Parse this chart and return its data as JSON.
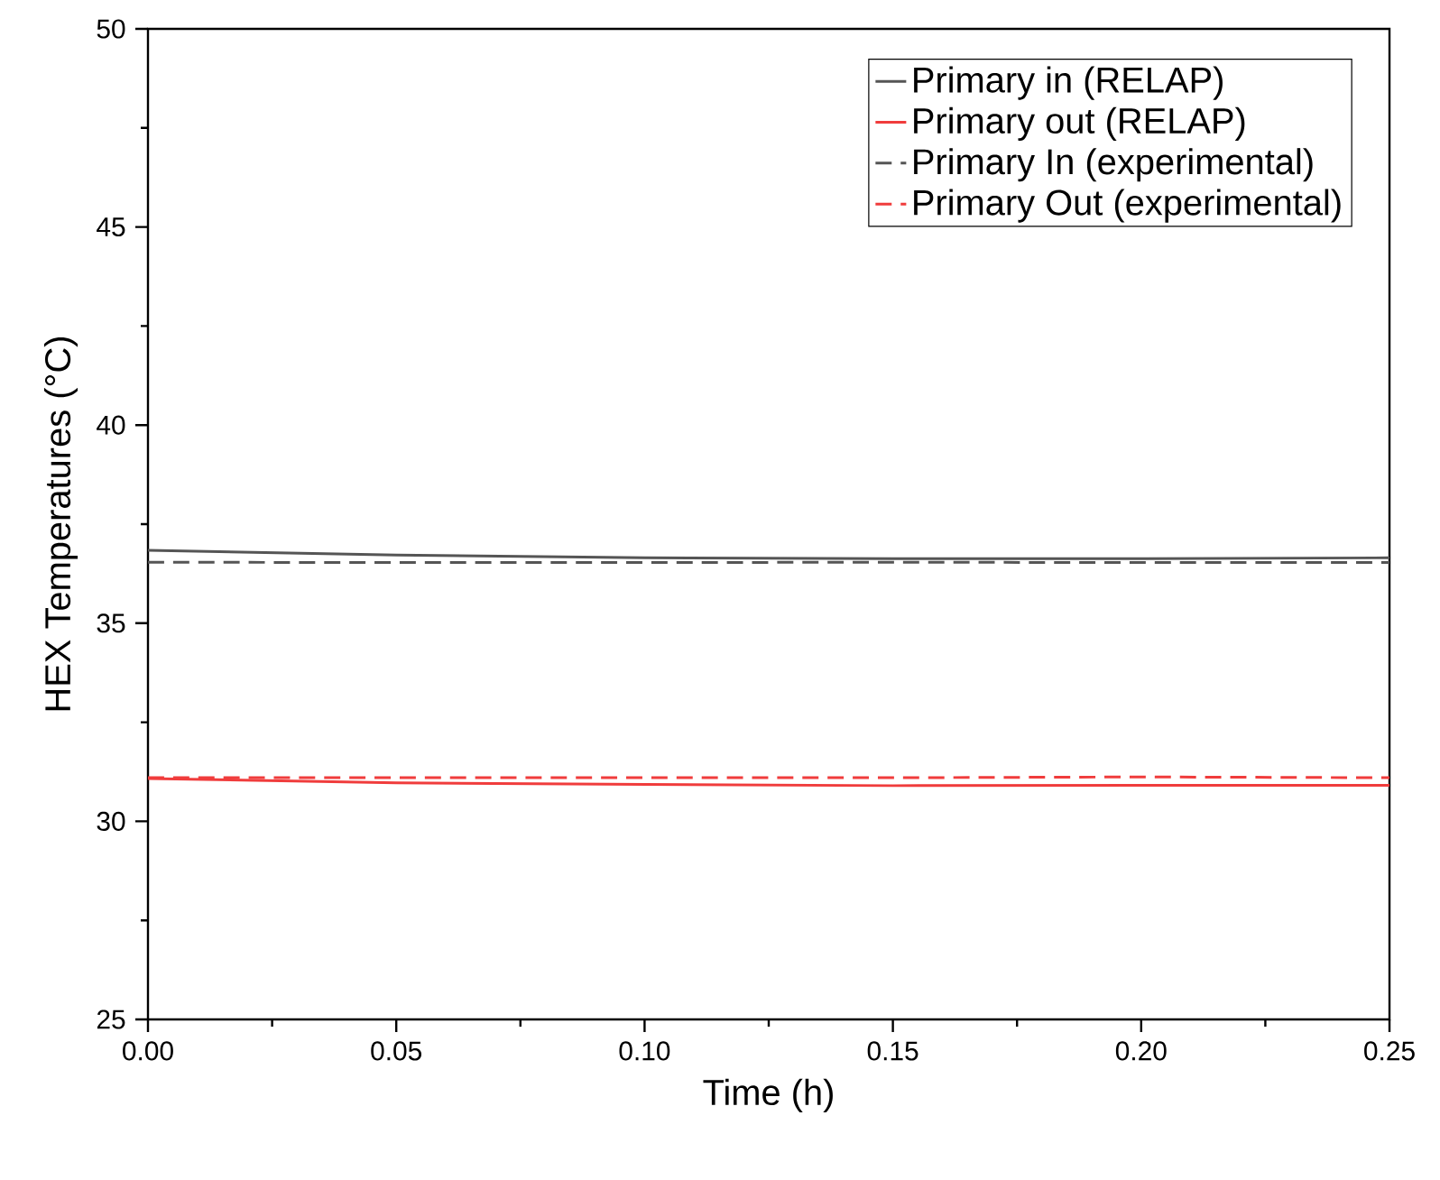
{
  "chart_data": {
    "type": "line",
    "xlabel": "Time (h)",
    "ylabel": "HEX Temperatures (°C)",
    "xlim": [
      0,
      0.25
    ],
    "ylim": [
      25,
      50
    ],
    "xticks": [
      {
        "value": 0,
        "label": "0.00"
      },
      {
        "value": 0.05,
        "label": "0.05"
      },
      {
        "value": 0.1,
        "label": "0.10"
      },
      {
        "value": 0.15,
        "label": "0.15"
      },
      {
        "value": 0.2,
        "label": "0.20"
      },
      {
        "value": 0.25,
        "label": "0.25"
      }
    ],
    "yticks": [
      25,
      30,
      35,
      40,
      45,
      50
    ],
    "legend": "top right",
    "grid": false,
    "marker": "none",
    "series": [
      {
        "name": "Primary in (RELAP)",
        "color": "#555555",
        "line_style": "solid",
        "x": [
          0,
          0.05,
          0.1,
          0.15,
          0.2,
          0.25
        ],
        "values": [
          36.84,
          36.72,
          36.65,
          36.63,
          36.63,
          36.65
        ]
      },
      {
        "name": "Primary out (RELAP)",
        "color": "#f03c3c",
        "line_style": "solid",
        "x": [
          0,
          0.05,
          0.1,
          0.15,
          0.2,
          0.25
        ],
        "values": [
          31.08,
          30.97,
          30.93,
          30.9,
          30.91,
          30.91
        ]
      },
      {
        "name": "Primary In (experimental)",
        "color": "#555555",
        "line_style": "dashed",
        "x": [
          0,
          0.05,
          0.1,
          0.15,
          0.2,
          0.25
        ],
        "values": [
          36.54,
          36.53,
          36.53,
          36.54,
          36.53,
          36.53
        ]
      },
      {
        "name": "Primary Out (experimental)",
        "color": "#f03c3c",
        "line_style": "dashed",
        "x": [
          0,
          0.05,
          0.1,
          0.15,
          0.2,
          0.25
        ],
        "values": [
          31.1,
          31.1,
          31.1,
          31.1,
          31.12,
          31.1
        ]
      }
    ]
  }
}
